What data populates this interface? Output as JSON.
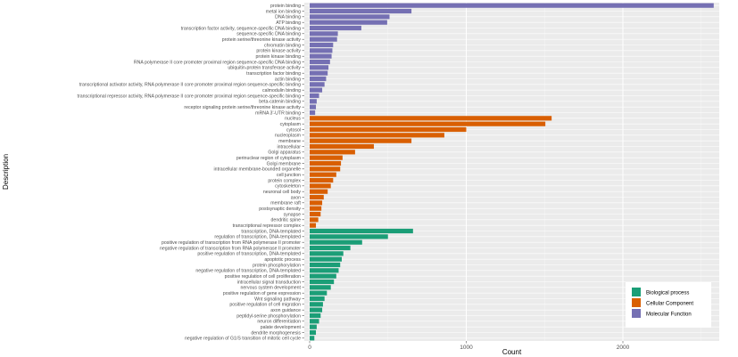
{
  "chart_data": {
    "type": "bar",
    "orientation": "horizontal",
    "xlabel": "Count",
    "ylabel": "Description",
    "xlim": [
      0,
      2680
    ],
    "xticks": [
      0,
      1000,
      2000
    ],
    "grid": true,
    "legend_position": "bottom-right",
    "series": [
      {
        "name": "Biological process",
        "color": "#1b9e77"
      },
      {
        "name": "Cellular Component",
        "color": "#d95f02"
      },
      {
        "name": "Molecular Function",
        "color": "#7570b3"
      }
    ],
    "bars": [
      {
        "label": "protein binding",
        "value": 2580,
        "series": 2
      },
      {
        "label": "metal ion binding",
        "value": 650,
        "series": 2
      },
      {
        "label": "DNA binding",
        "value": 510,
        "series": 2
      },
      {
        "label": "ATP binding",
        "value": 495,
        "series": 2
      },
      {
        "label": "transcription factor activity, sequence-specific DNA binding",
        "value": 330,
        "series": 2
      },
      {
        "label": "sequence-specific DNA binding",
        "value": 180,
        "series": 2
      },
      {
        "label": "protein serine/threonine kinase activity",
        "value": 175,
        "series": 2
      },
      {
        "label": "chromatin binding",
        "value": 150,
        "series": 2
      },
      {
        "label": "protein kinase activity",
        "value": 145,
        "series": 2
      },
      {
        "label": "protein kinase binding",
        "value": 140,
        "series": 2
      },
      {
        "label": "RNA polymerase II core promoter proximal region sequence-specific DNA binding",
        "value": 130,
        "series": 2
      },
      {
        "label": "ubiquitin-protein transferase activity",
        "value": 120,
        "series": 2
      },
      {
        "label": "transcription factor binding",
        "value": 115,
        "series": 2
      },
      {
        "label": "actin binding",
        "value": 105,
        "series": 2
      },
      {
        "label": "transcriptional activator activity, RNA polymerase II core promoter proximal region sequence-specific binding",
        "value": 95,
        "series": 2
      },
      {
        "label": "calmodulin binding",
        "value": 80,
        "series": 2
      },
      {
        "label": "transcriptional repressor activity, RNA polymerase II core promoter proximal region sequence-specific binding",
        "value": 60,
        "series": 2
      },
      {
        "label": "beta-catenin binding",
        "value": 45,
        "series": 2
      },
      {
        "label": "receptor signaling protein serine/threonine kinase activity",
        "value": 40,
        "series": 2
      },
      {
        "label": "mRNA 3'-UTR binding",
        "value": 35,
        "series": 2
      },
      {
        "label": "nucleus",
        "value": 1545,
        "series": 1
      },
      {
        "label": "cytoplasm",
        "value": 1505,
        "series": 1
      },
      {
        "label": "cytosol",
        "value": 1000,
        "series": 1
      },
      {
        "label": "nucleoplasm",
        "value": 860,
        "series": 1
      },
      {
        "label": "membrane",
        "value": 650,
        "series": 1
      },
      {
        "label": "intracellular",
        "value": 410,
        "series": 1
      },
      {
        "label": "Golgi apparatus",
        "value": 290,
        "series": 1
      },
      {
        "label": "perinuclear region of cytoplasm",
        "value": 210,
        "series": 1
      },
      {
        "label": "Golgi membrane",
        "value": 200,
        "series": 1
      },
      {
        "label": "intracellular membrane-bounded organelle",
        "value": 195,
        "series": 1
      },
      {
        "label": "cell junction",
        "value": 170,
        "series": 1
      },
      {
        "label": "protein complex",
        "value": 150,
        "series": 1
      },
      {
        "label": "cytoskeleton",
        "value": 135,
        "series": 1
      },
      {
        "label": "neuronal cell body",
        "value": 115,
        "series": 1
      },
      {
        "label": "axon",
        "value": 90,
        "series": 1
      },
      {
        "label": "membrane raft",
        "value": 80,
        "series": 1
      },
      {
        "label": "postsynaptic density",
        "value": 75,
        "series": 1
      },
      {
        "label": "synapse",
        "value": 70,
        "series": 1
      },
      {
        "label": "dendritic spine",
        "value": 55,
        "series": 1
      },
      {
        "label": "transcriptional repressor complex",
        "value": 40,
        "series": 1
      },
      {
        "label": "transcription, DNA-templated",
        "value": 660,
        "series": 0
      },
      {
        "label": "regulation of transcription, DNA-templated",
        "value": 500,
        "series": 0
      },
      {
        "label": "positive regulation of transcription from RNA polymerase II promoter",
        "value": 335,
        "series": 0
      },
      {
        "label": "negative regulation of transcription from RNA polymerase II promoter",
        "value": 260,
        "series": 0
      },
      {
        "label": "positive regulation of transcription, DNA-templated",
        "value": 215,
        "series": 0
      },
      {
        "label": "apoptotic process",
        "value": 205,
        "series": 0
      },
      {
        "label": "protein phosphorylation",
        "value": 195,
        "series": 0
      },
      {
        "label": "negative regulation of transcription, DNA-templated",
        "value": 185,
        "series": 0
      },
      {
        "label": "positive regulation of cell proliferation",
        "value": 170,
        "series": 0
      },
      {
        "label": "intracellular signal transduction",
        "value": 155,
        "series": 0
      },
      {
        "label": "nervous system development",
        "value": 135,
        "series": 0
      },
      {
        "label": "positive regulation of gene expression",
        "value": 110,
        "series": 0
      },
      {
        "label": "Wnt signaling pathway",
        "value": 95,
        "series": 0
      },
      {
        "label": "positive regulation of cell migration",
        "value": 85,
        "series": 0
      },
      {
        "label": "axon guidance",
        "value": 80,
        "series": 0
      },
      {
        "label": "peptidyl-serine phosphorylation",
        "value": 70,
        "series": 0
      },
      {
        "label": "neuron differentiation",
        "value": 60,
        "series": 0
      },
      {
        "label": "palate development",
        "value": 45,
        "series": 0
      },
      {
        "label": "dendrite morphogenesis",
        "value": 40,
        "series": 0
      },
      {
        "label": "negative regulation of G1/S transition of mitotic cell cycle",
        "value": 30,
        "series": 0
      }
    ]
  }
}
